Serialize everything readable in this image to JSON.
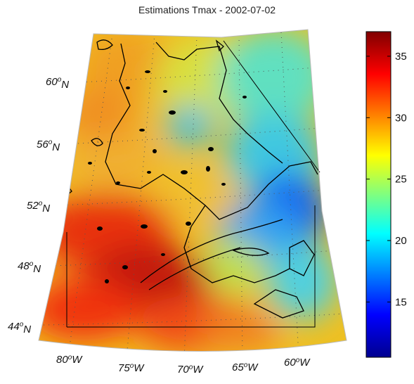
{
  "title": "Estimations Tmax - 2002-07-02",
  "colorbar": {
    "min": 10.5,
    "max": 37,
    "ticks": [
      15,
      20,
      25,
      30,
      35
    ],
    "colormap": [
      "#00008f",
      "#0000ff",
      "#00ffff",
      "#ffff00",
      "#ff0000",
      "#800000"
    ]
  },
  "latitude_labels": [
    {
      "deg": "60",
      "hemi": "N"
    },
    {
      "deg": "56",
      "hemi": "N"
    },
    {
      "deg": "52",
      "hemi": "N"
    },
    {
      "deg": "48",
      "hemi": "N"
    },
    {
      "deg": "44",
      "hemi": "N"
    }
  ],
  "longitude_labels": [
    {
      "deg": "80",
      "hemi": "W"
    },
    {
      "deg": "75",
      "hemi": "W"
    },
    {
      "deg": "70",
      "hemi": "W"
    },
    {
      "deg": "65",
      "hemi": "W"
    },
    {
      "deg": "60",
      "hemi": "W"
    }
  ]
}
